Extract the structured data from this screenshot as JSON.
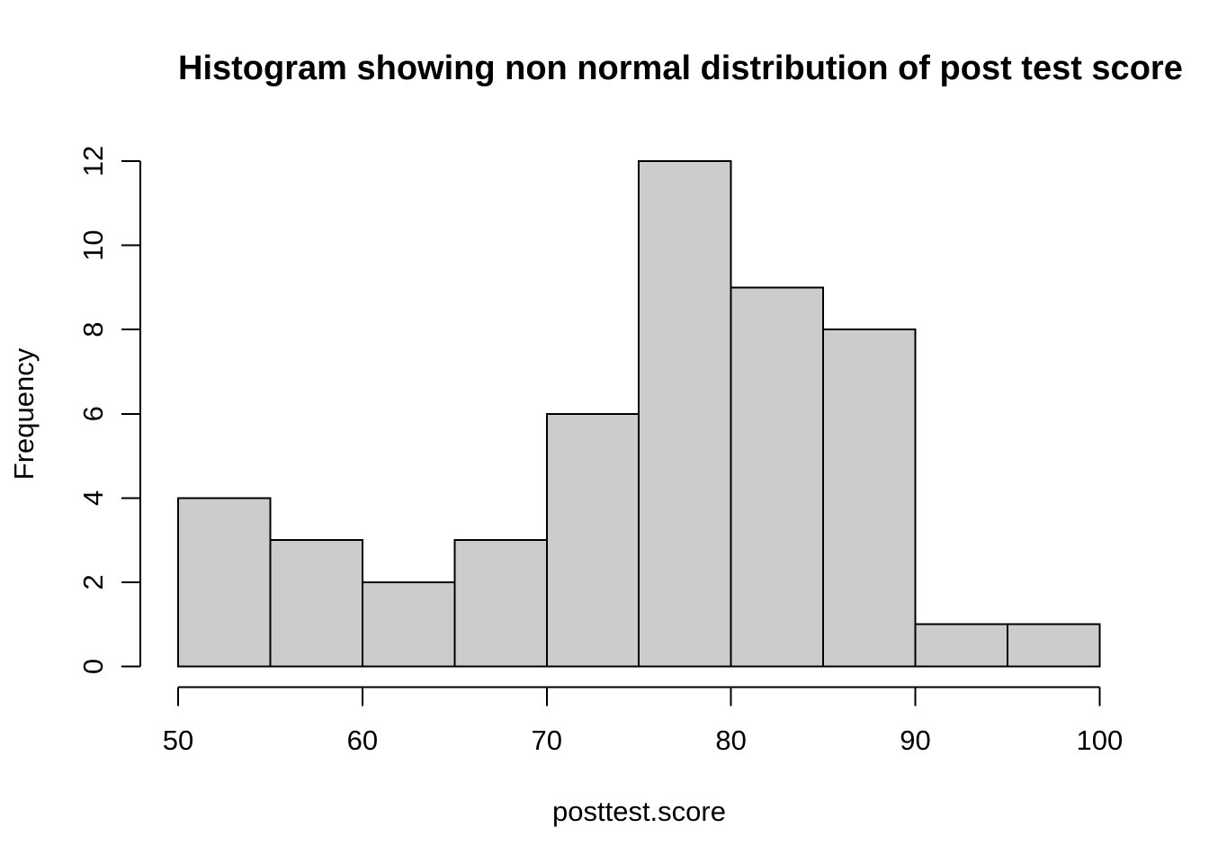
{
  "chart_data": {
    "type": "bar",
    "subtype": "histogram",
    "title": "Histogram showing non normal distribution of post test score",
    "xlabel": "posttest.score",
    "ylabel": "Frequency",
    "bin_edges": [
      50,
      55,
      60,
      65,
      70,
      75,
      80,
      85,
      90,
      95,
      100
    ],
    "counts": [
      4,
      3,
      2,
      3,
      6,
      12,
      9,
      8,
      1,
      1
    ],
    "x_ticks": [
      50,
      60,
      70,
      80,
      90,
      100
    ],
    "y_ticks": [
      0,
      2,
      4,
      6,
      8,
      10,
      12
    ],
    "xlim": [
      50,
      100
    ],
    "ylim": [
      0,
      12
    ],
    "grid": false,
    "legend": false,
    "colors": {
      "bar_fill": "#cccccc",
      "bar_border": "#000000",
      "axis": "#000000",
      "text": "#000000",
      "background": "#ffffff"
    }
  }
}
